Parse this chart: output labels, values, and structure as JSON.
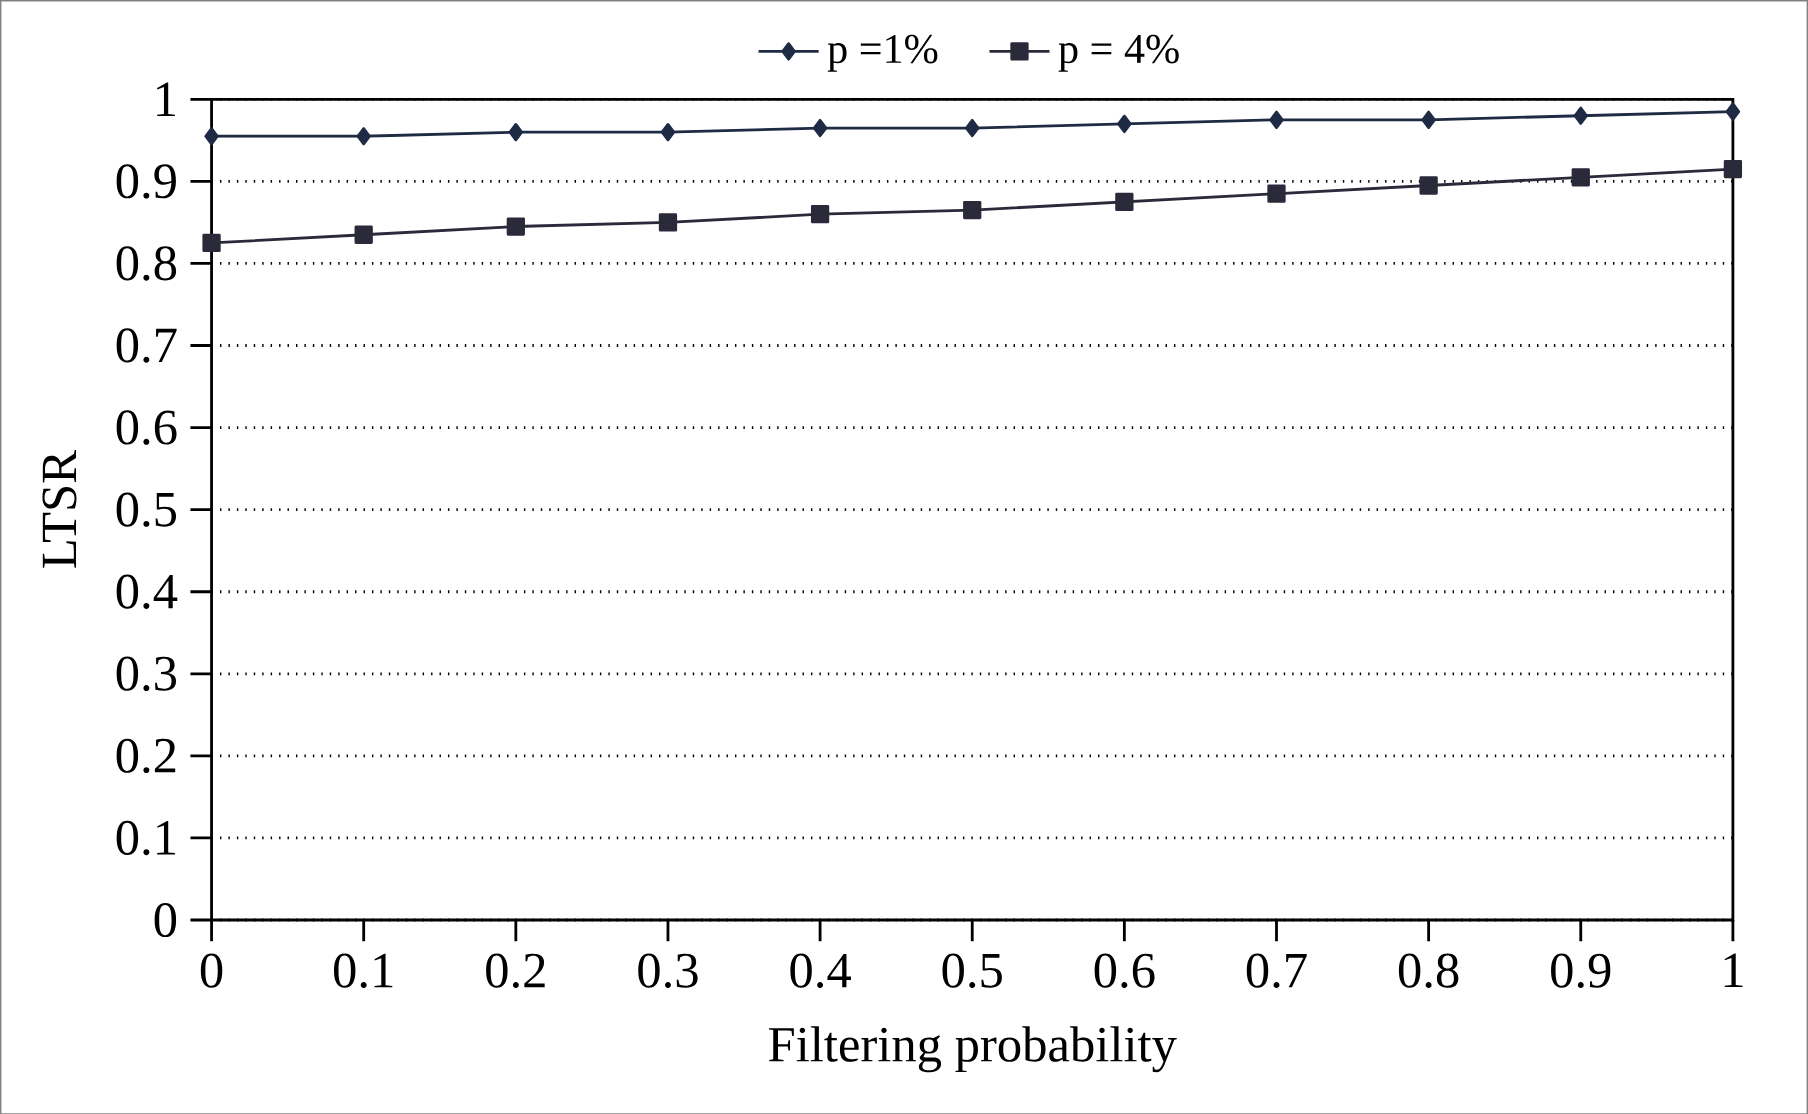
{
  "chart_data": {
    "type": "line",
    "xlabel": "Filtering probability",
    "ylabel": "LTSR",
    "x": [
      0,
      0.1,
      0.2,
      0.3,
      0.4,
      0.5,
      0.6,
      0.7,
      0.8,
      0.9,
      1
    ],
    "series": [
      {
        "name": "p =1%",
        "color": "#1f2a44",
        "marker": "diamond",
        "values": [
          0.955,
          0.955,
          0.96,
          0.96,
          0.965,
          0.965,
          0.97,
          0.975,
          0.975,
          0.98,
          0.985
        ]
      },
      {
        "name": "p = 4%",
        "color": "#2a2a3a",
        "marker": "square",
        "values": [
          0.825,
          0.835,
          0.845,
          0.85,
          0.86,
          0.865,
          0.875,
          0.885,
          0.895,
          0.905,
          0.915
        ]
      }
    ],
    "xlim": [
      0,
      1
    ],
    "ylim": [
      0,
      1
    ],
    "xticks": [
      0,
      0.1,
      0.2,
      0.3,
      0.4,
      0.5,
      0.6,
      0.7,
      0.8,
      0.9,
      1
    ],
    "yticks": [
      0,
      0.1,
      0.2,
      0.3,
      0.4,
      0.5,
      0.6,
      0.7,
      0.8,
      0.9,
      1
    ],
    "grid": "y",
    "legend": "top",
    "line_style": "solid"
  }
}
